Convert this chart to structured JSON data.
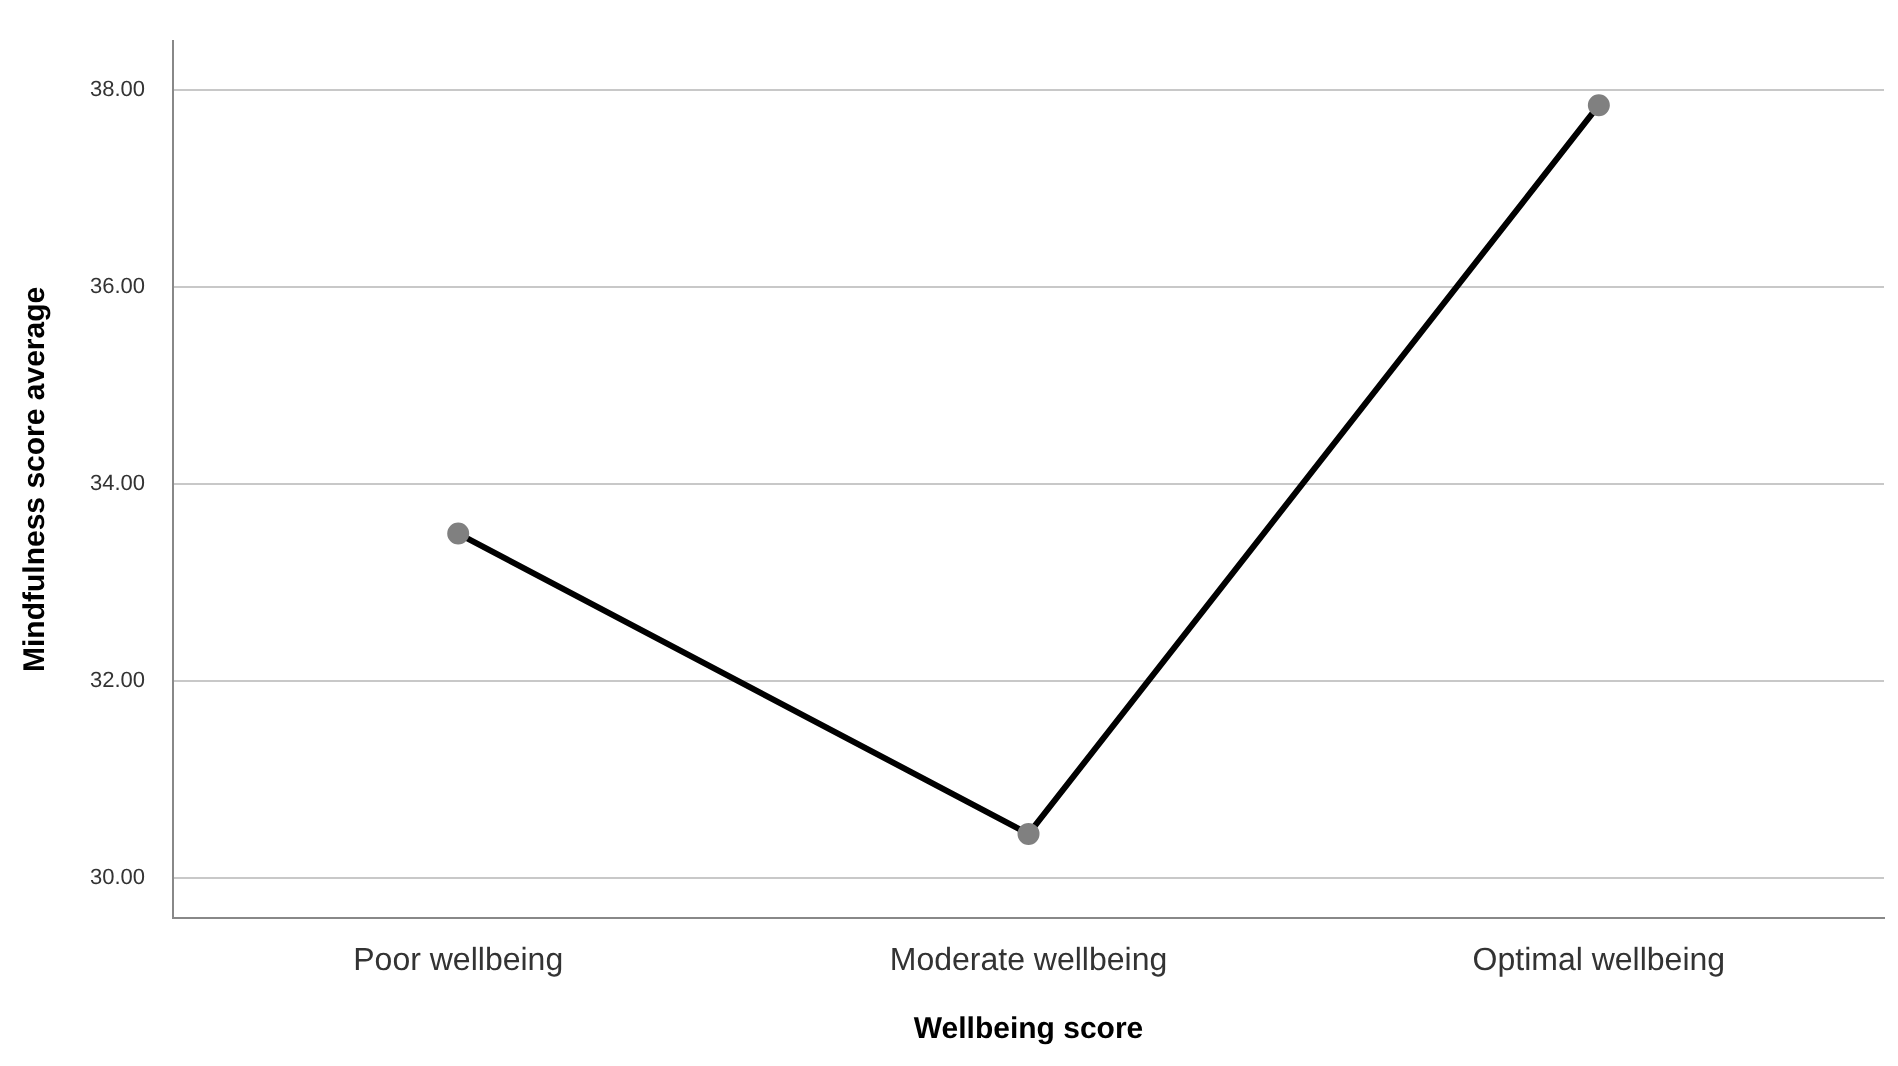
{
  "chart_data": {
    "type": "line",
    "xlabel": "Wellbeing score",
    "ylabel": "Mindfulness score average",
    "categories": [
      "Poor wellbeing",
      "Moderate wellbeing",
      "Optimal wellbeing"
    ],
    "series": [
      {
        "color": "#000000",
        "values": [
          33.5,
          30.45,
          37.85
        ]
      }
    ],
    "ylim": [
      29.6,
      38.5
    ],
    "yticks": [
      {
        "value": 30,
        "label": "30.00"
      },
      {
        "value": 32,
        "label": "32.00"
      },
      {
        "value": 34,
        "label": "34.00"
      },
      {
        "value": 36,
        "label": "36.00"
      },
      {
        "value": 38,
        "label": "38.00"
      }
    ],
    "grid": "y",
    "legend": false,
    "marker": "circle",
    "line_style": "solid"
  }
}
